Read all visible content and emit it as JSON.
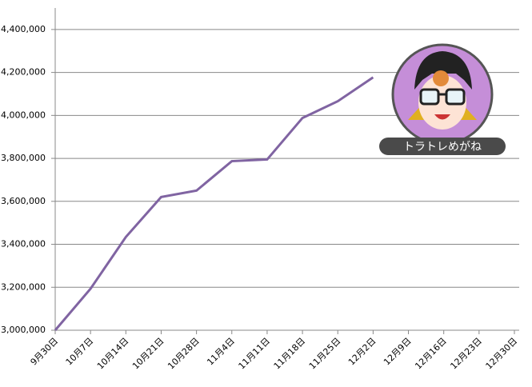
{
  "chart_data": {
    "type": "line",
    "categories": [
      "9月30日",
      "10月7日",
      "10月14日",
      "10月21日",
      "10月28日",
      "11月4日",
      "11月11日",
      "11月18日",
      "11月25日",
      "12月2日",
      "12月9日",
      "12月16日",
      "12月23日",
      "12月30日"
    ],
    "series": [
      {
        "name": "total",
        "color": "#8064a2",
        "values": [
          3000000,
          3193000,
          3434000,
          3620000,
          3650000,
          3787000,
          3795000,
          3988000,
          4066000,
          4177000,
          null,
          null,
          null,
          null
        ]
      }
    ],
    "ylim": [
      3000000,
      4500000
    ],
    "yticks": [
      {
        "value": 3000000,
        "label": "3,000,000"
      },
      {
        "value": 3200000,
        "label": "3,200,000"
      },
      {
        "value": 3400000,
        "label": "3,400,000"
      },
      {
        "value": 3600000,
        "label": "3,600,000"
      },
      {
        "value": 3800000,
        "label": "3,800,000"
      },
      {
        "value": 4000000,
        "label": "4,000,000"
      },
      {
        "value": 4200000,
        "label": "4,200,000"
      },
      {
        "value": 4400000,
        "label": "4,400,000"
      }
    ],
    "grid": true,
    "annotation": "トラトレめがね"
  }
}
